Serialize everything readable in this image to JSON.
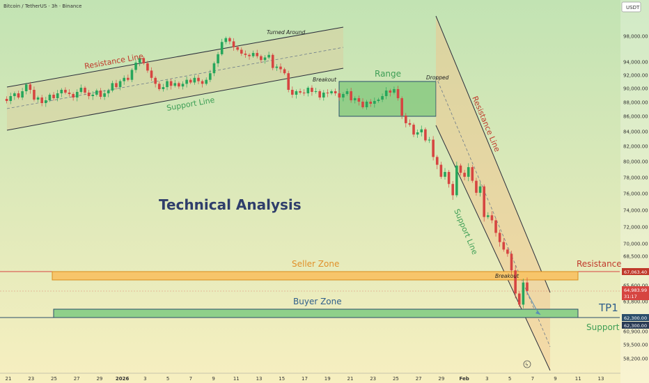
{
  "header": {
    "symbol": "Bitcoin / TetherUS · 3h · Binance",
    "currency": "USDT"
  },
  "colors": {
    "bg_top": "#c2e3b3",
    "bg_bottom": "#f7efc0",
    "up": "#26a65b",
    "down": "#d64541",
    "channel_fill": "#d9cfa0",
    "channel_line": "#2a2d3a",
    "range_fill": "#7fc67a",
    "seller_zone": "#f7c56a",
    "buyer_zone": "#8fd08a",
    "resistance_text": "#c0392b",
    "support_text": "#3d9e55",
    "title_text": "#2f3e6b"
  },
  "annotations": {
    "resistance_line_1": "Resistance Line",
    "support_line_1": "Support Line",
    "turned_around": "Turned Around",
    "breakout_1": "Breakout",
    "range": "Range",
    "dropped": "Dropped",
    "resistance_line_2": "Resistance Line",
    "support_line_2": "Support Line",
    "technical_analysis": "Technical Analysis",
    "seller_zone": "Seller Zone",
    "buyer_zone": "Buyer Zone",
    "breakout_2": "Breakout",
    "resistance": "Resistance",
    "tp1": "TP1",
    "support": "Support"
  },
  "price_tags": {
    "resistance_price": "67,063.40",
    "current_price": "64,983.99",
    "countdown": "31:17",
    "support_price": "62,300.00",
    "support_price_2": "62,300.00"
  },
  "chart_data": {
    "type": "line",
    "title": "",
    "xlabel": "",
    "ylabel": "",
    "ylim": [
      57000,
      100500
    ],
    "y_ticks": [
      "98,000.00",
      "94,000.00",
      "92,000.00",
      "90,000.00",
      "88,000.00",
      "86,000.00",
      "84,000.00",
      "82,000.00",
      "80,000.00",
      "78,000.00",
      "76,000.00",
      "74,000.00",
      "72,000.00",
      "70,000.00",
      "68,500.00",
      "65,600.00",
      "63,800.00",
      "60,900.00",
      "59,500.00",
      "58,200.00"
    ],
    "x_ticks": [
      "21",
      "23",
      "25",
      "27",
      "29",
      "2026",
      "3",
      "5",
      "7",
      "9",
      "11",
      "13",
      "15",
      "17",
      "19",
      "21",
      "23",
      "25",
      "27",
      "29",
      "Feb",
      "3",
      "5",
      "7",
      "9",
      "11",
      "13"
    ],
    "series": [
      {
        "values": [
          88500,
          88200,
          88900,
          89300,
          88700,
          89600,
          90600,
          89800,
          88400,
          88700,
          87900,
          88300,
          89100,
          88600,
          89300,
          89800,
          89400,
          89200,
          88700,
          89500,
          90100,
          89400,
          88900,
          89100,
          89700,
          88800,
          89300,
          89700,
          90800,
          90200,
          91100,
          91600,
          91300,
          92800,
          93900,
          94600,
          93800,
          92700,
          91600,
          90700,
          89900,
          90200,
          91100,
          90400,
          90800,
          90300,
          90700,
          91300,
          90900,
          91600,
          91100,
          90700,
          91300,
          92300,
          93800,
          95200,
          97100,
          97700,
          97200,
          96300,
          95900,
          95300,
          95100,
          94900,
          95400,
          94900,
          94300,
          94700,
          95100,
          93100,
          93300,
          92900,
          92300,
          89800,
          89100,
          89600,
          89400,
          89300,
          90100,
          89500,
          89600,
          88700,
          89400,
          89300,
          89600,
          89300,
          88700,
          89200,
          89600,
          88300,
          88600,
          88100,
          87300,
          88100,
          87800,
          88200,
          88400,
          88900,
          89700,
          89400,
          89900,
          88600,
          86100,
          85100,
          84900,
          83600,
          83900,
          84300,
          82800,
          82900,
          80600,
          79600,
          78100,
          78700,
          77200,
          75800,
          79500,
          78600,
          78100,
          79300,
          77600,
          76100,
          76900,
          73200,
          73400,
          72800,
          71300,
          70200,
          69300,
          68800,
          67100,
          64700,
          63500,
          65900,
          64983
        ],
        "name": ""
      }
    ]
  }
}
